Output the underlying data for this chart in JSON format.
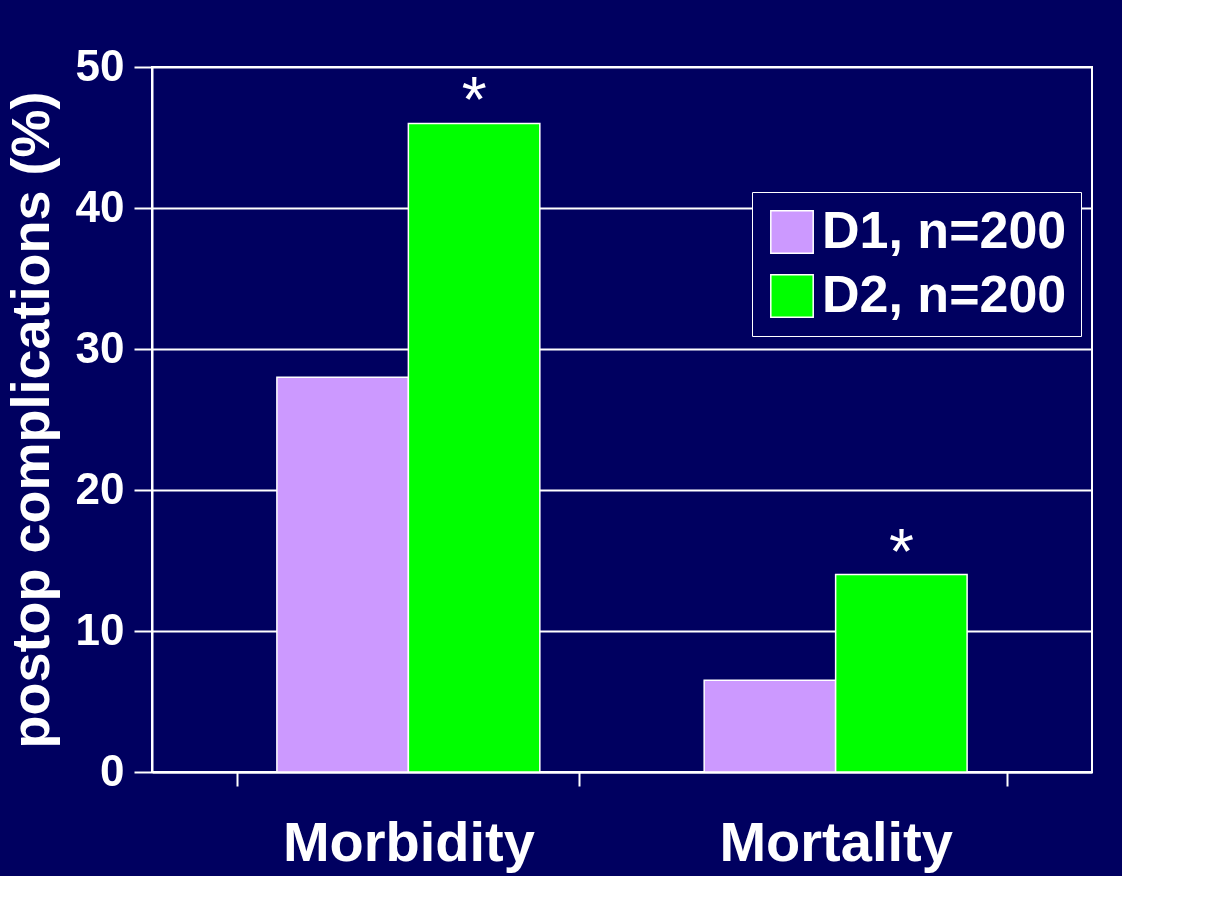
{
  "chart_data": {
    "type": "bar",
    "ylabel": "postop complications (%)",
    "categories": [
      "Morbidity",
      "Mortality"
    ],
    "series": [
      {
        "name": "D1, n=200",
        "color": "#cc99ff",
        "values": [
          28,
          6.5
        ]
      },
      {
        "name": "D2, n=200",
        "color": "#00ff00",
        "values": [
          46,
          14
        ]
      }
    ],
    "ylim": [
      0,
      50
    ],
    "yticks": [
      0,
      10,
      20,
      30,
      40,
      50
    ],
    "grid": "y",
    "legend": "top right",
    "annotations": [
      {
        "text": "*",
        "x": "Morbidity",
        "y": 46
      },
      {
        "text": "*",
        "x": "Mortality",
        "y": 14
      }
    ]
  }
}
